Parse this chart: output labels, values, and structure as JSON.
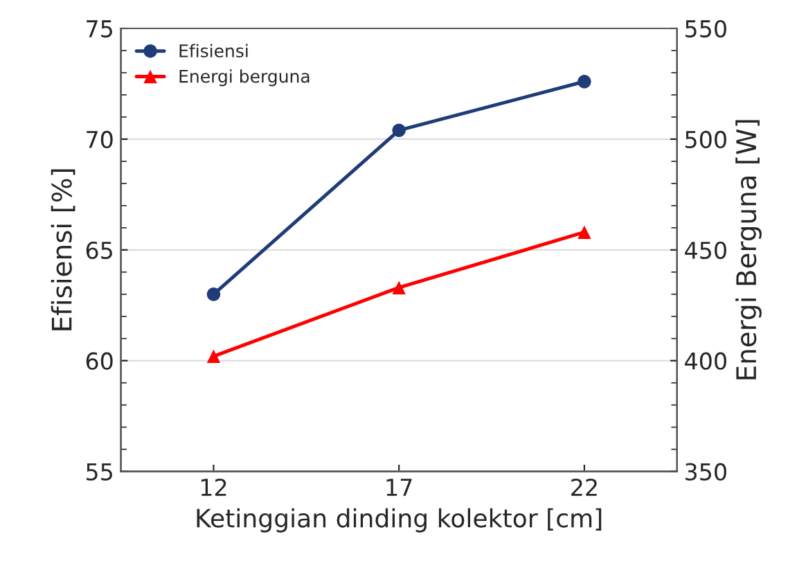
{
  "chart_data": {
    "type": "line",
    "xlabel": "Ketinggian dinding kolektor [cm]",
    "ylabel": "Efisiensi [%]",
    "y2label": "Energi Berguna [W]",
    "x": [
      12,
      17,
      22
    ],
    "xlim": [
      9.5,
      24.5
    ],
    "xticks": [
      12,
      17,
      22
    ],
    "ylim": [
      55,
      75
    ],
    "yticks": [
      55,
      60,
      65,
      70,
      75
    ],
    "y2lim": [
      350,
      550
    ],
    "y2ticks": [
      350,
      400,
      450,
      500,
      550
    ],
    "series": [
      {
        "name": "Efisiensi",
        "color": "#1f3c78",
        "values": [
          63.0,
          70.4,
          72.6
        ],
        "marker": "circle"
      },
      {
        "name": "Energi berguna",
        "color": "#ff0000",
        "values": [
          402,
          433,
          458
        ],
        "marker": "triangle",
        "axis": "y2"
      }
    ],
    "grid": "y",
    "legend": "top left"
  }
}
